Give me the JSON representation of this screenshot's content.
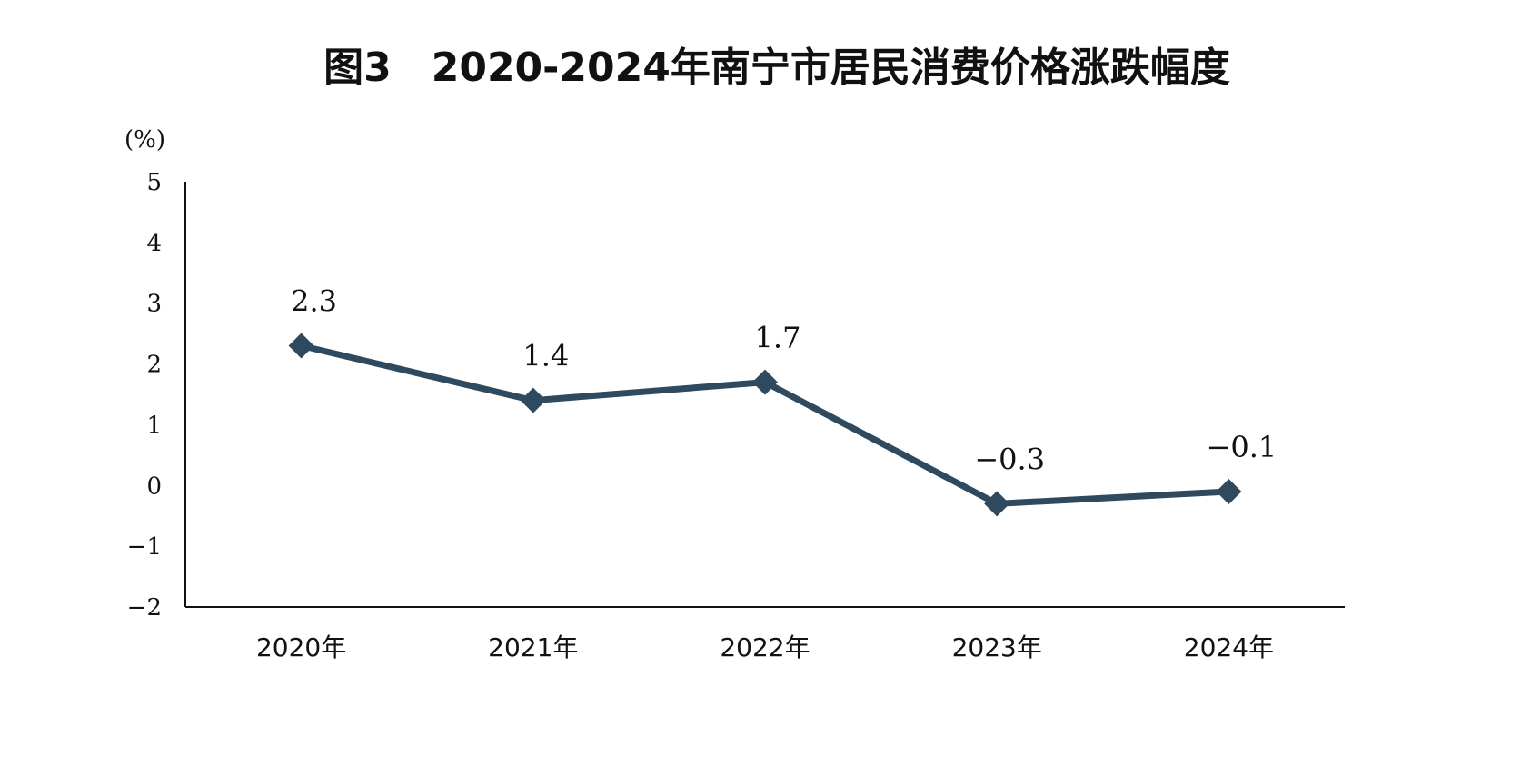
{
  "chart_data": {
    "type": "line",
    "title": "图3　2020-2024年南宁市居民消费价格涨跌幅度",
    "ylabel": "(%)",
    "categories": [
      "2020年",
      "2021年",
      "2022年",
      "2023年",
      "2024年"
    ],
    "values": [
      2.3,
      1.4,
      1.7,
      -0.3,
      -0.1
    ],
    "data_labels": [
      "2.3",
      "1.4",
      "1.7",
      "−0.3",
      "−0.1"
    ],
    "ylim": [
      -2,
      5
    ],
    "yticks": [
      5,
      4,
      3,
      2,
      1,
      0,
      -1,
      -2
    ],
    "ytick_labels": [
      "5",
      "4",
      "3",
      "2",
      "1",
      "0",
      "−1",
      "−2"
    ],
    "grid": false,
    "legend": "none",
    "marker": "diamond",
    "colors": {
      "line": "#2f4a5e",
      "marker": "#2f4a5e",
      "axis": "#111111"
    }
  }
}
